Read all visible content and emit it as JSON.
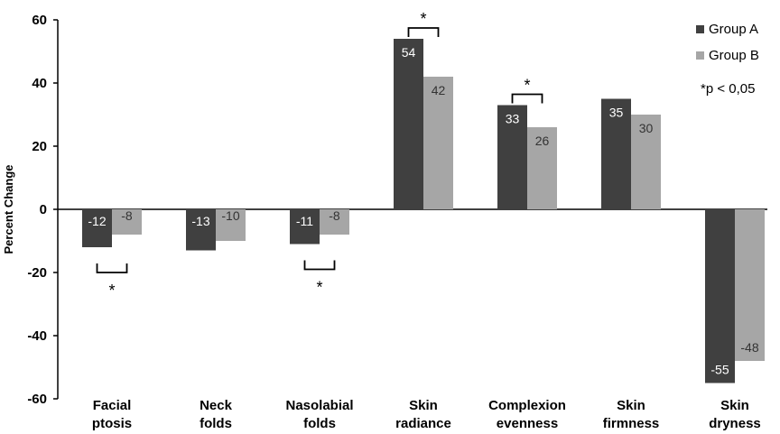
{
  "chart_data": {
    "type": "bar",
    "ylabel": "Percent Change",
    "ylim": [
      -60,
      60
    ],
    "yticks": [
      60,
      40,
      20,
      0,
      -20,
      -40,
      -60
    ],
    "categories": [
      [
        "Facial",
        "ptosis"
      ],
      [
        "Neck",
        "folds"
      ],
      [
        "Nasolabial",
        "folds"
      ],
      [
        "Skin",
        "radiance"
      ],
      [
        "Complexion",
        "evenness"
      ],
      [
        "Skin",
        "firmness"
      ],
      [
        "Skin",
        "dryness"
      ]
    ],
    "series": [
      {
        "name": "Group A",
        "color": "#404040",
        "values": [
          -12,
          -13,
          -11,
          54,
          33,
          35,
          -55
        ],
        "labels": [
          "-12",
          "-13",
          "-11",
          "54",
          "33",
          "35",
          "-55"
        ]
      },
      {
        "name": "Group B",
        "color": "#a6a6a6",
        "values": [
          -8,
          -10,
          -8,
          42,
          26,
          30,
          -48
        ],
        "labels": [
          "-8",
          "-10",
          "-8",
          "42",
          "26",
          "30",
          "-48"
        ]
      }
    ],
    "significance": [
      {
        "category_index": 0,
        "mark": "*"
      },
      {
        "category_index": 2,
        "mark": "*"
      },
      {
        "category_index": 3,
        "mark": "*"
      },
      {
        "category_index": 4,
        "mark": "*"
      }
    ],
    "legend_note": "*p < 0,05",
    "legend_position": "top-right",
    "grid": false
  }
}
